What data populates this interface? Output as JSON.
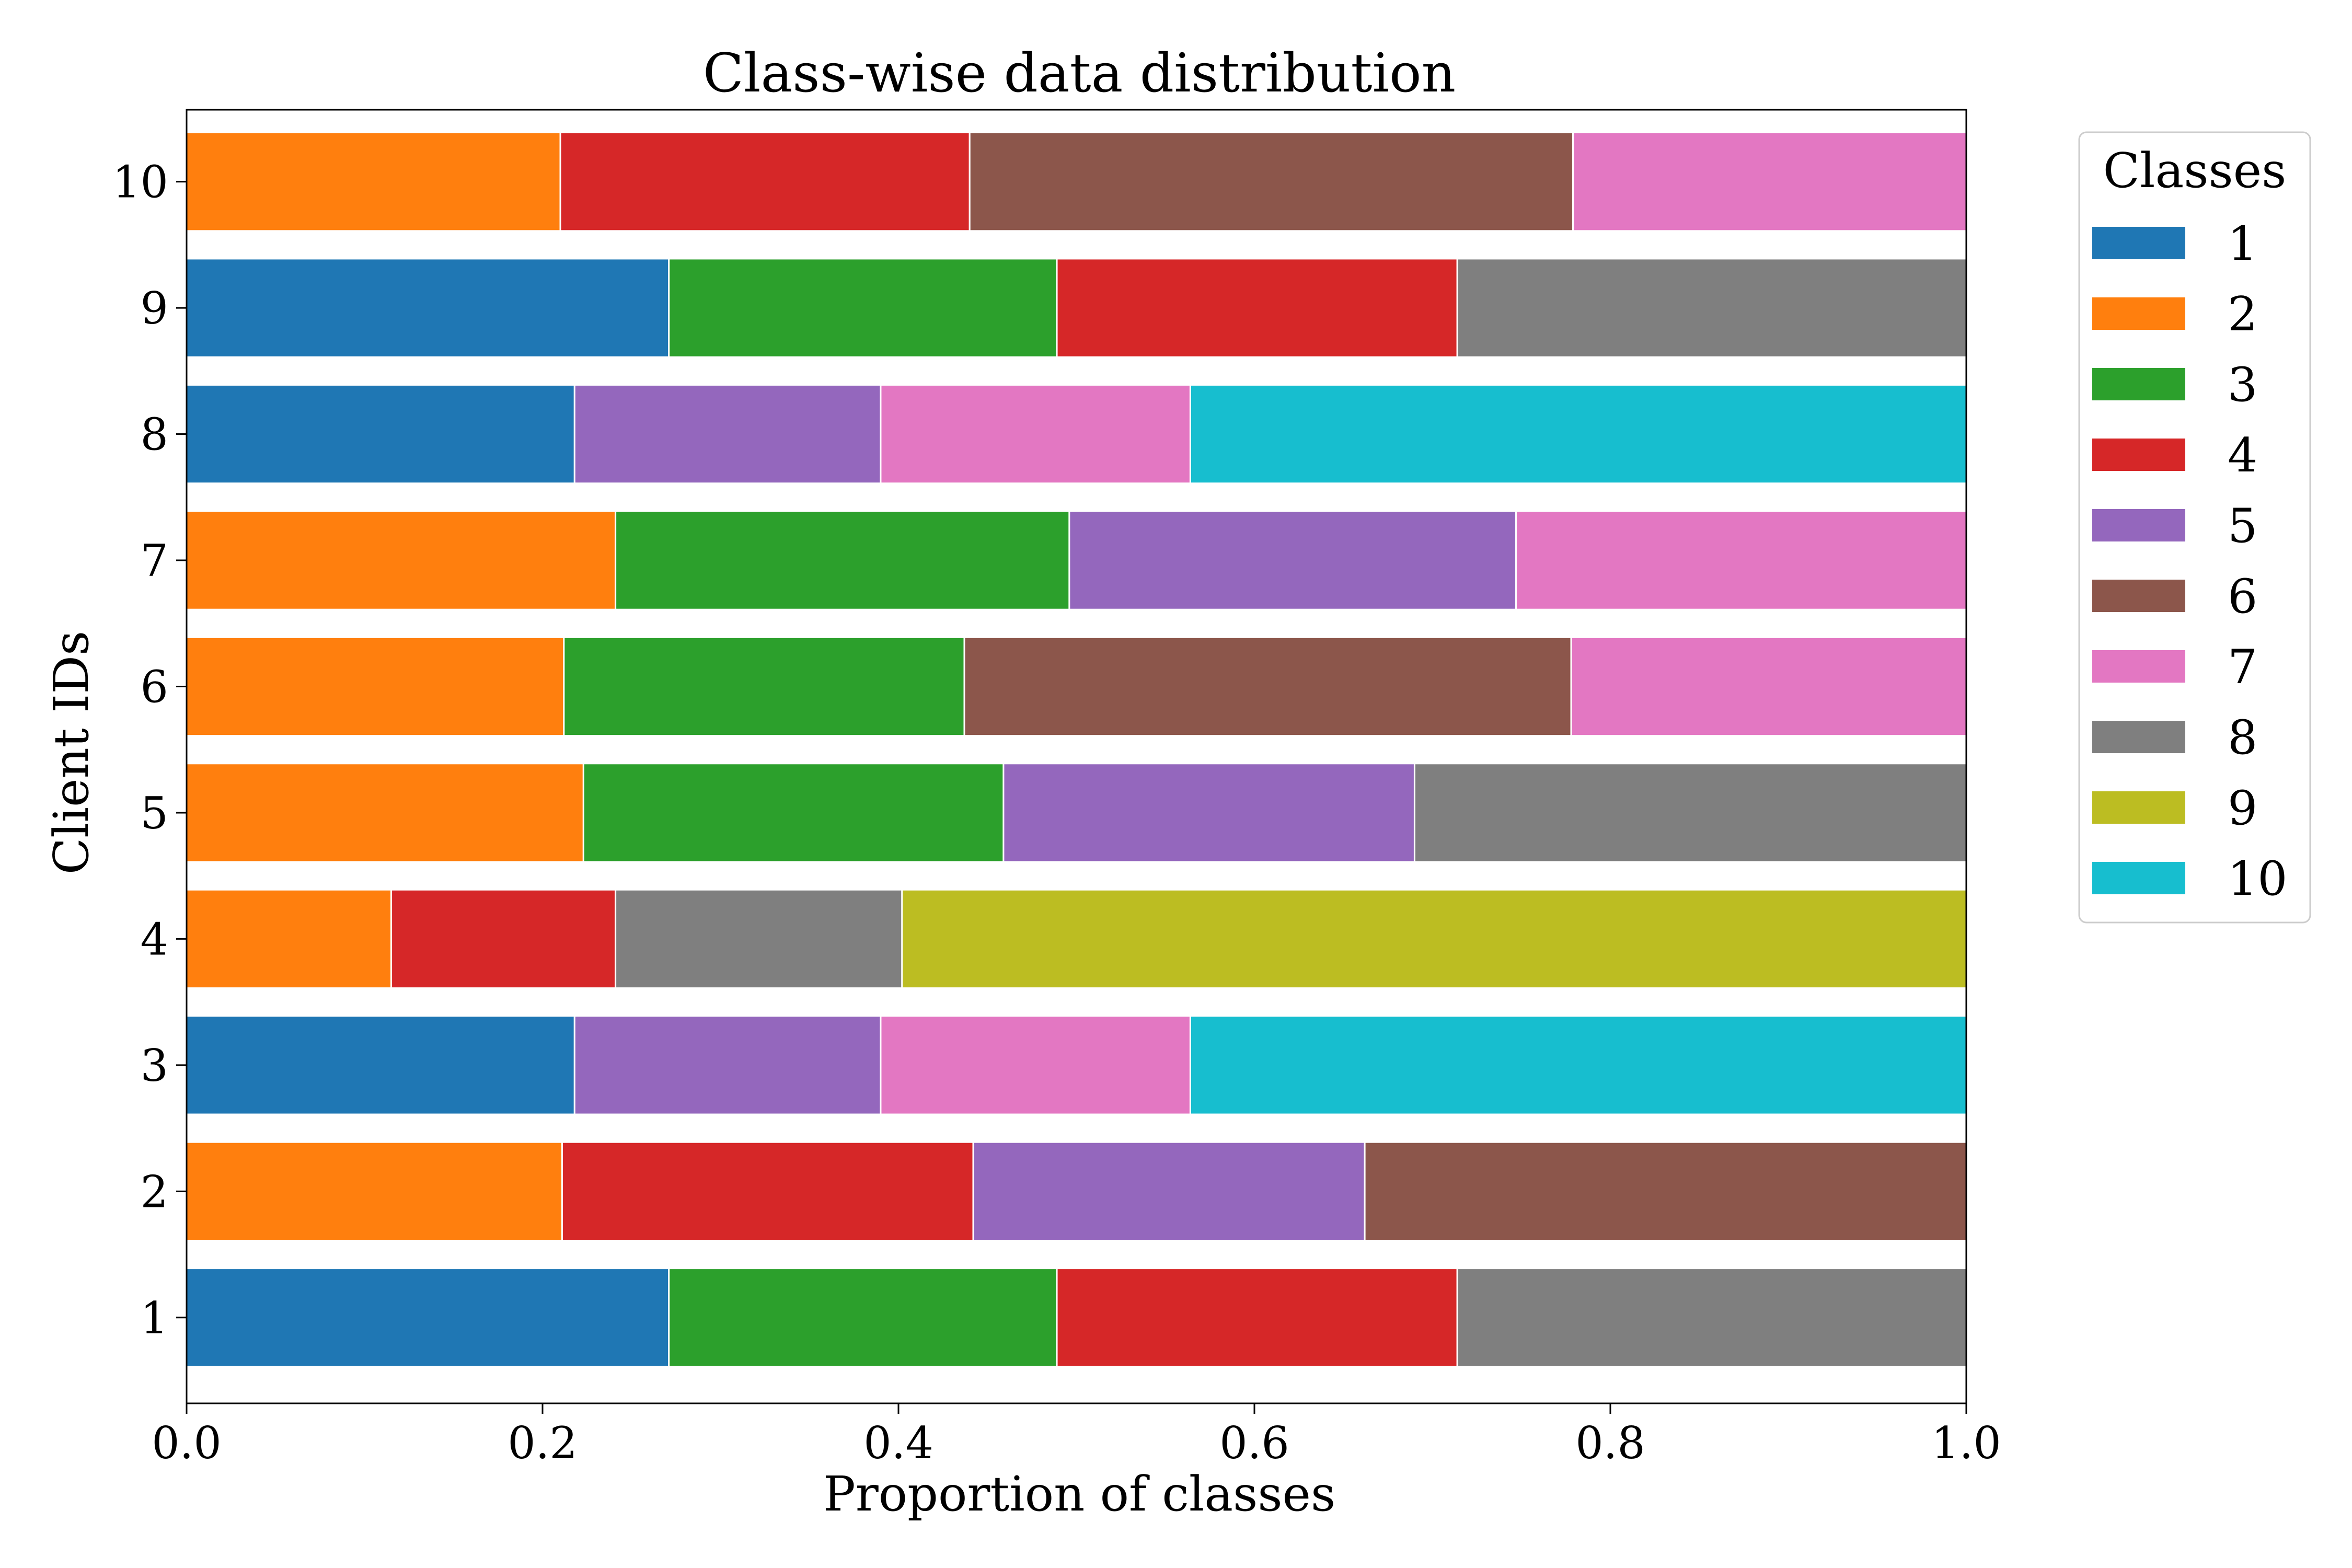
{
  "chart_data": {
    "type": "bar",
    "orientation": "horizontal",
    "stacked": true,
    "title": "Class-wise data distribution",
    "xlabel": "Proportion of classes",
    "ylabel": "Client IDs",
    "xlim": [
      0.0,
      1.0
    ],
    "xticks": [
      "0.0",
      "0.2",
      "0.4",
      "0.6",
      "0.8",
      "1.0"
    ],
    "categories": [
      "1",
      "2",
      "3",
      "4",
      "5",
      "6",
      "7",
      "8",
      "9",
      "10"
    ],
    "legend": {
      "title": "Classes",
      "placement": "outside-right-top"
    },
    "series": [
      {
        "name": "1",
        "color": "#1f77b4",
        "values": [
          0.271,
          0.0,
          0.218,
          0.0,
          0.0,
          0.0,
          0.0,
          0.218,
          0.271,
          0.0
        ]
      },
      {
        "name": "2",
        "color": "#ff7f0e",
        "values": [
          0.0,
          0.211,
          0.0,
          0.115,
          0.223,
          0.212,
          0.241,
          0.0,
          0.0,
          0.21
        ]
      },
      {
        "name": "3",
        "color": "#2ca02c",
        "values": [
          0.218,
          0.0,
          0.0,
          0.0,
          0.236,
          0.225,
          0.255,
          0.0,
          0.218,
          0.0
        ]
      },
      {
        "name": "4",
        "color": "#d62728",
        "values": [
          0.225,
          0.231,
          0.0,
          0.126,
          0.0,
          0.0,
          0.0,
          0.0,
          0.225,
          0.23
        ]
      },
      {
        "name": "5",
        "color": "#9467bd",
        "values": [
          0.0,
          0.22,
          0.172,
          0.0,
          0.231,
          0.0,
          0.251,
          0.172,
          0.0,
          0.0
        ]
      },
      {
        "name": "6",
        "color": "#8c564b",
        "values": [
          0.0,
          0.338,
          0.0,
          0.0,
          0.0,
          0.341,
          0.0,
          0.0,
          0.0,
          0.339
        ]
      },
      {
        "name": "7",
        "color": "#e377c2",
        "values": [
          0.0,
          0.0,
          0.174,
          0.0,
          0.0,
          0.222,
          0.253,
          0.174,
          0.0,
          0.221
        ]
      },
      {
        "name": "8",
        "color": "#7f7f7f",
        "values": [
          0.286,
          0.0,
          0.0,
          0.161,
          0.31,
          0.0,
          0.0,
          0.0,
          0.286,
          0.0
        ]
      },
      {
        "name": "9",
        "color": "#bcbd22",
        "values": [
          0.0,
          0.0,
          0.0,
          0.598,
          0.0,
          0.0,
          0.0,
          0.0,
          0.0,
          0.0
        ]
      },
      {
        "name": "10",
        "color": "#17becf",
        "values": [
          0.0,
          0.0,
          0.436,
          0.0,
          0.0,
          0.0,
          0.0,
          0.436,
          0.0,
          0.0
        ]
      }
    ]
  }
}
